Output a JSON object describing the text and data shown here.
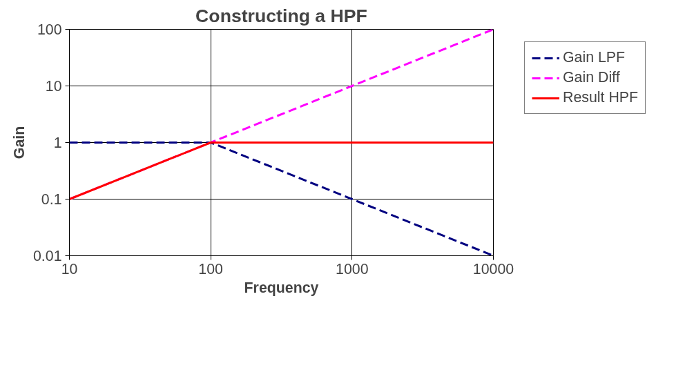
{
  "chart_data": {
    "type": "line",
    "title": "Constructing a HPF",
    "xlabel": "Frequency",
    "ylabel": "Gain",
    "x": [
      10,
      100,
      1000,
      10000
    ],
    "series": [
      {
        "name": "Gain LPF",
        "color": "#000080",
        "line_style": "dashed",
        "values": [
          1,
          1,
          0.1,
          0.01
        ]
      },
      {
        "name": "Gain Diff",
        "color": "#ff00ff",
        "line_style": "dashed",
        "values": [
          0.1,
          1,
          10,
          100
        ]
      },
      {
        "name": "Result HPF",
        "color": "#ff0000",
        "line_style": "solid",
        "values": [
          0.1,
          1,
          1,
          1
        ]
      }
    ],
    "log": "xy",
    "xlim": [
      10,
      10000
    ],
    "xticks": [
      10,
      100,
      1000,
      10000
    ],
    "ylim": [
      0.01,
      100
    ],
    "yticks": [
      0.01,
      0.1,
      1,
      10,
      100
    ],
    "grid": true,
    "legend": "right",
    "marker": "none"
  }
}
